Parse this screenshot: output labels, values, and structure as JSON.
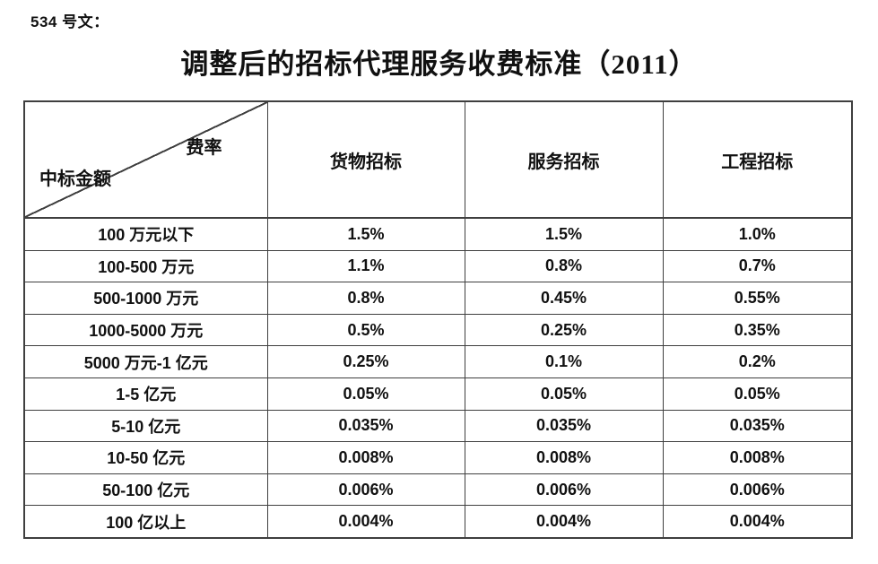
{
  "doc": {
    "doc_number": "534 号文：",
    "title": "调整后的招标代理服务收费标准（2011）"
  },
  "table": {
    "corner": {
      "top_right": "费率",
      "bottom_left": "中标金额"
    },
    "columns": [
      "货物招标",
      "服务招标",
      "工程招标"
    ],
    "rows": [
      {
        "label": "100 万元以下",
        "values": [
          "1.5%",
          "1.5%",
          "1.0%"
        ]
      },
      {
        "label": "100-500 万元",
        "values": [
          "1.1%",
          "0.8%",
          "0.7%"
        ]
      },
      {
        "label": "500-1000 万元",
        "values": [
          "0.8%",
          "0.45%",
          "0.55%"
        ]
      },
      {
        "label": "1000-5000 万元",
        "values": [
          "0.5%",
          "0.25%",
          "0.35%"
        ]
      },
      {
        "label": "5000 万元-1 亿元",
        "values": [
          "0.25%",
          "0.1%",
          "0.2%"
        ]
      },
      {
        "label": "1-5 亿元",
        "values": [
          "0.05%",
          "0.05%",
          "0.05%"
        ]
      },
      {
        "label": "5-10 亿元",
        "values": [
          "0.035%",
          "0.035%",
          "0.035%"
        ]
      },
      {
        "label": "10-50 亿元",
        "values": [
          "0.008%",
          "0.008%",
          "0.008%"
        ]
      },
      {
        "label": "50-100 亿元",
        "values": [
          "0.006%",
          "0.006%",
          "0.006%"
        ]
      },
      {
        "label": "100 亿以上",
        "values": [
          "0.004%",
          "0.004%",
          "0.004%"
        ]
      }
    ],
    "colors": {
      "border": "#3f3f3f",
      "text": "#111111",
      "background": "#ffffff"
    }
  }
}
